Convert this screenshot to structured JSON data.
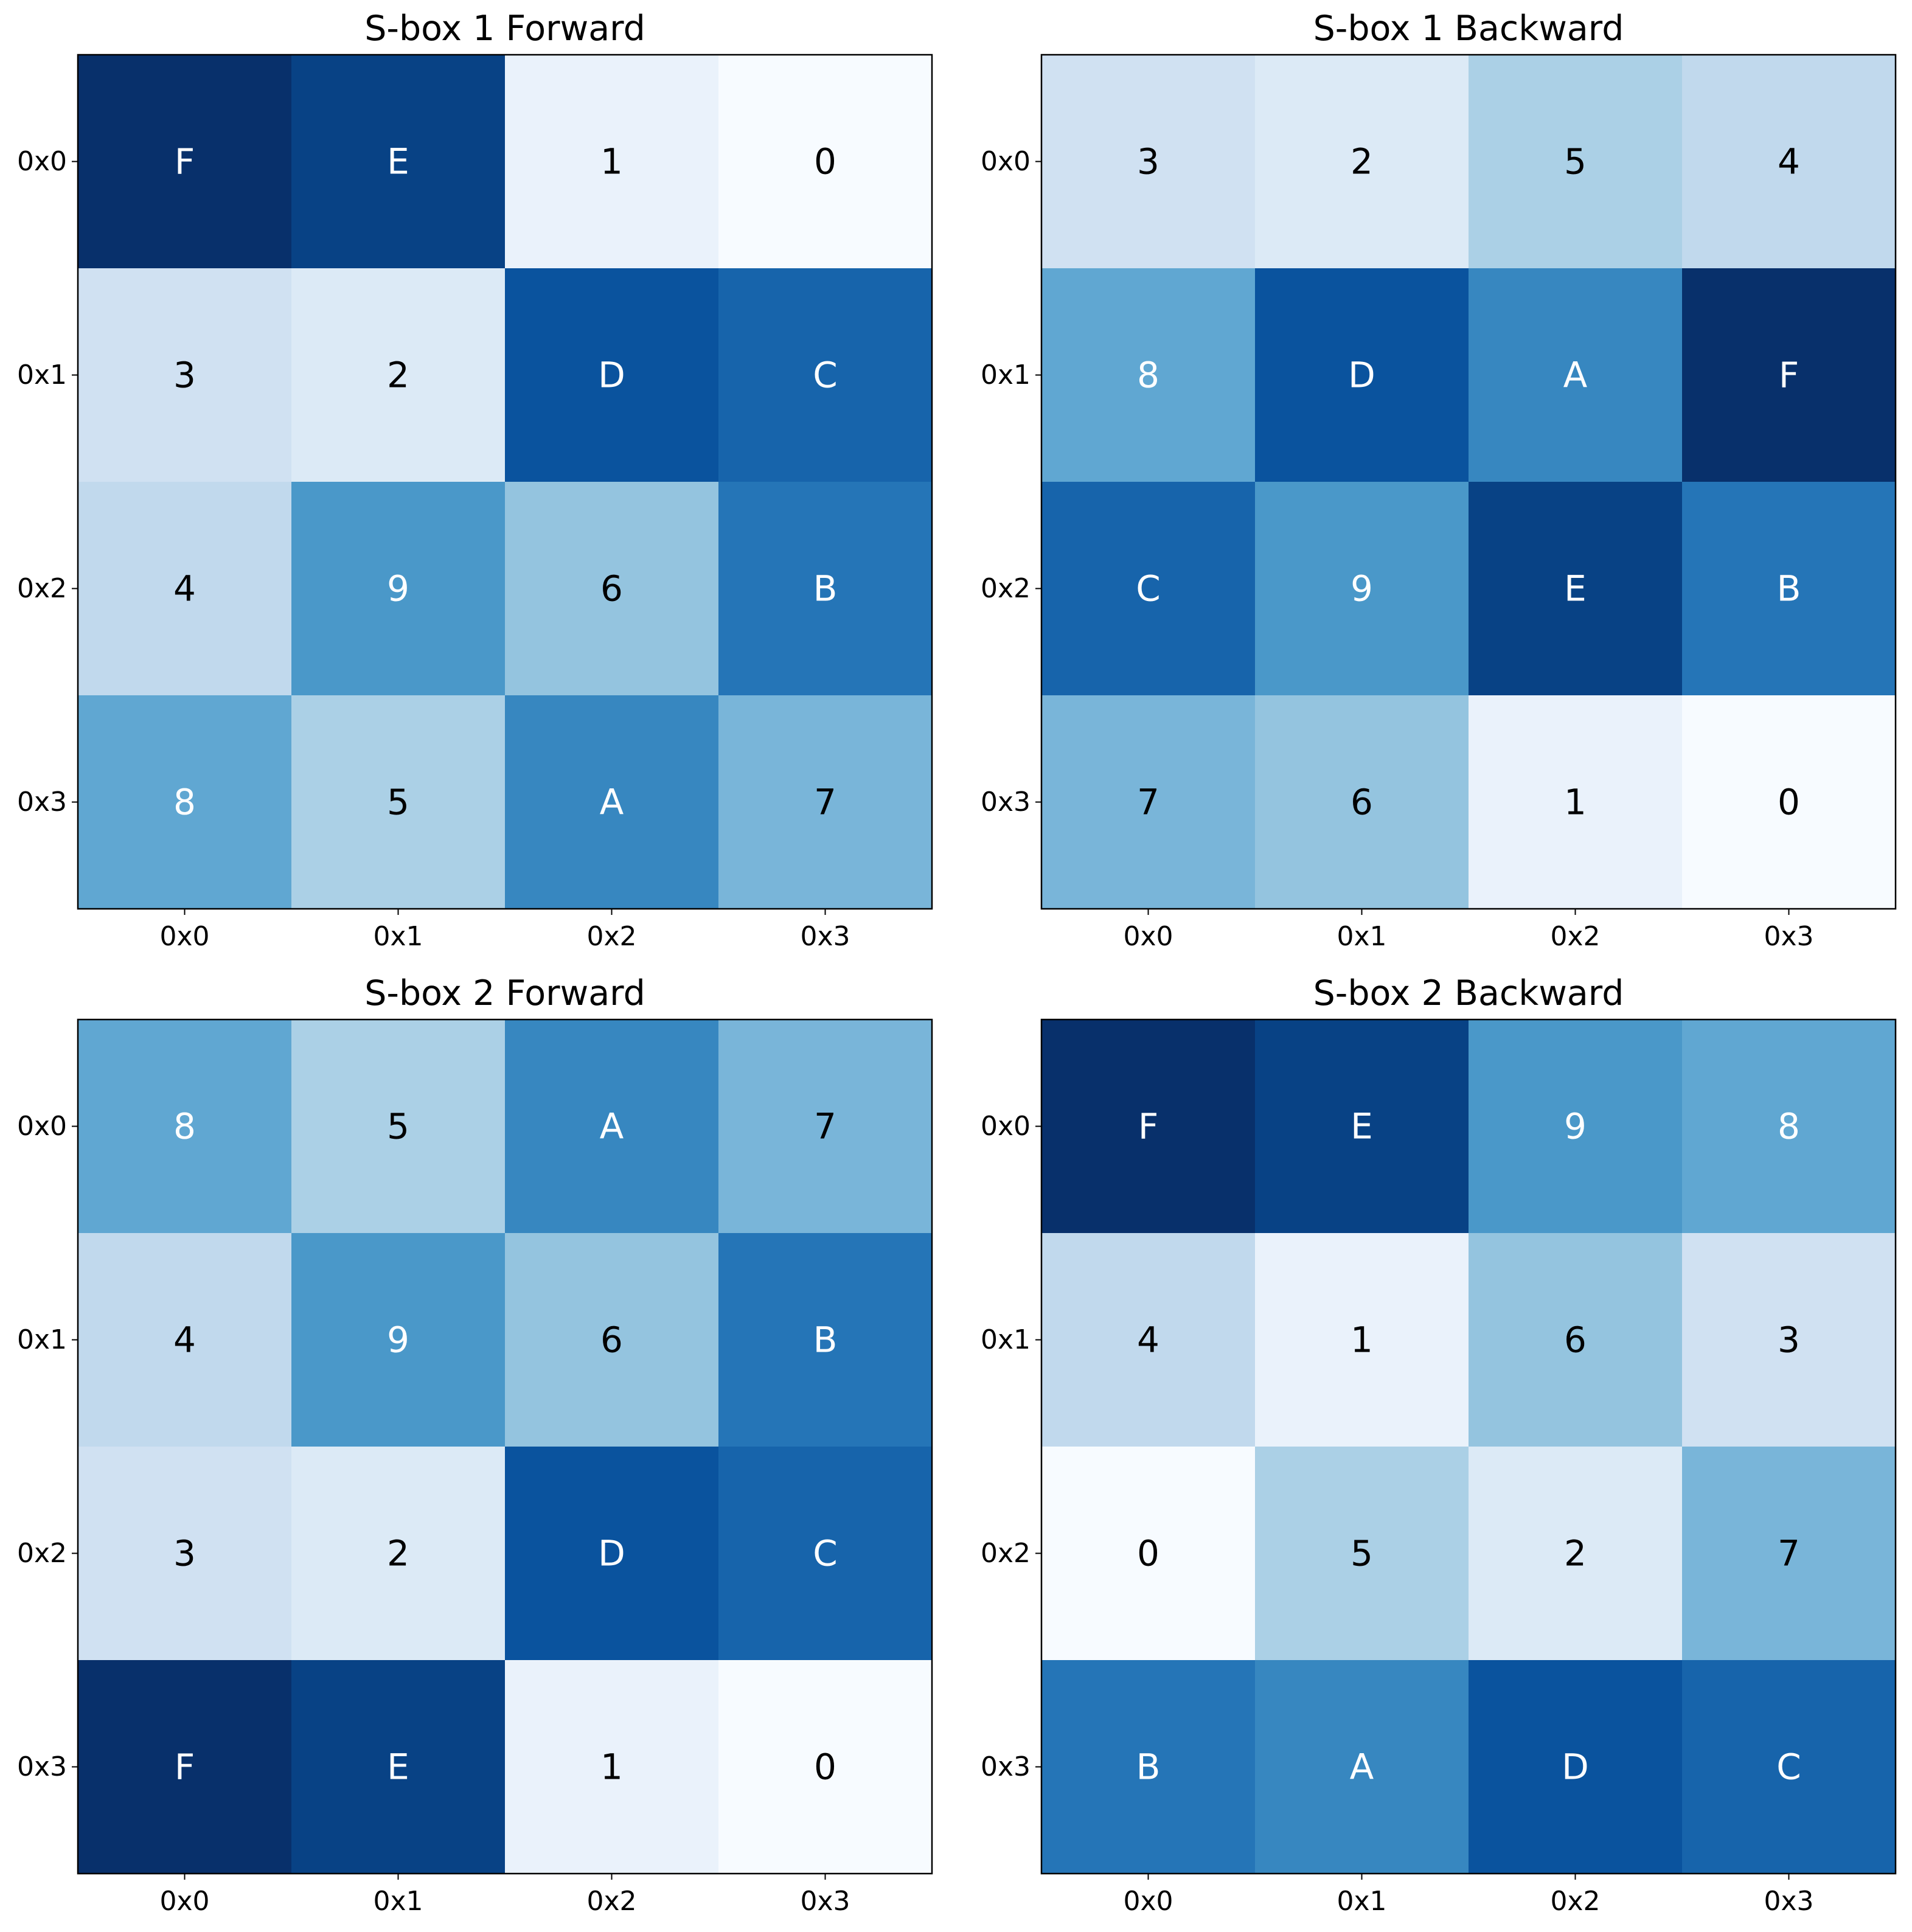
{
  "chart_data": [
    {
      "type": "heatmap",
      "title": "S-box 1 Forward",
      "xticks": [
        "0x0",
        "0x1",
        "0x2",
        "0x3"
      ],
      "yticks": [
        "0x0",
        "0x1",
        "0x2",
        "0x3"
      ],
      "colormap": "Blues",
      "vmin": 0,
      "vmax": 15,
      "values": [
        [
          15,
          14,
          1,
          0
        ],
        [
          3,
          2,
          13,
          12
        ],
        [
          4,
          9,
          6,
          11
        ],
        [
          8,
          5,
          10,
          7
        ]
      ],
      "labels": [
        [
          "F",
          "E",
          "1",
          "0"
        ],
        [
          "3",
          "2",
          "D",
          "C"
        ],
        [
          "4",
          "9",
          "6",
          "B"
        ],
        [
          "8",
          "5",
          "A",
          "7"
        ]
      ]
    },
    {
      "type": "heatmap",
      "title": "S-box 1 Backward",
      "xticks": [
        "0x0",
        "0x1",
        "0x2",
        "0x3"
      ],
      "yticks": [
        "0x0",
        "0x1",
        "0x2",
        "0x3"
      ],
      "colormap": "Blues",
      "vmin": 0,
      "vmax": 15,
      "values": [
        [
          3,
          2,
          5,
          4
        ],
        [
          8,
          13,
          10,
          15
        ],
        [
          12,
          9,
          14,
          11
        ],
        [
          7,
          6,
          1,
          0
        ]
      ],
      "labels": [
        [
          "3",
          "2",
          "5",
          "4"
        ],
        [
          "8",
          "D",
          "A",
          "F"
        ],
        [
          "C",
          "9",
          "E",
          "B"
        ],
        [
          "7",
          "6",
          "1",
          "0"
        ]
      ]
    },
    {
      "type": "heatmap",
      "title": "S-box 2 Forward",
      "xticks": [
        "0x0",
        "0x1",
        "0x2",
        "0x3"
      ],
      "yticks": [
        "0x0",
        "0x1",
        "0x2",
        "0x3"
      ],
      "colormap": "Blues",
      "vmin": 0,
      "vmax": 15,
      "values": [
        [
          8,
          5,
          10,
          7
        ],
        [
          4,
          9,
          6,
          11
        ],
        [
          3,
          2,
          13,
          12
        ],
        [
          15,
          14,
          1,
          0
        ]
      ],
      "labels": [
        [
          "8",
          "5",
          "A",
          "7"
        ],
        [
          "4",
          "9",
          "6",
          "B"
        ],
        [
          "3",
          "2",
          "D",
          "C"
        ],
        [
          "F",
          "E",
          "1",
          "0"
        ]
      ]
    },
    {
      "type": "heatmap",
      "title": "S-box 2 Backward",
      "xticks": [
        "0x0",
        "0x1",
        "0x2",
        "0x3"
      ],
      "yticks": [
        "0x0",
        "0x1",
        "0x2",
        "0x3"
      ],
      "colormap": "Blues",
      "vmin": 0,
      "vmax": 15,
      "values": [
        [
          15,
          14,
          9,
          8
        ],
        [
          4,
          1,
          6,
          3
        ],
        [
          0,
          5,
          2,
          7
        ],
        [
          11,
          10,
          13,
          12
        ]
      ],
      "labels": [
        [
          "F",
          "E",
          "9",
          "8"
        ],
        [
          "4",
          "1",
          "6",
          "3"
        ],
        [
          "0",
          "5",
          "2",
          "7"
        ],
        [
          "B",
          "A",
          "D",
          "C"
        ]
      ]
    }
  ]
}
